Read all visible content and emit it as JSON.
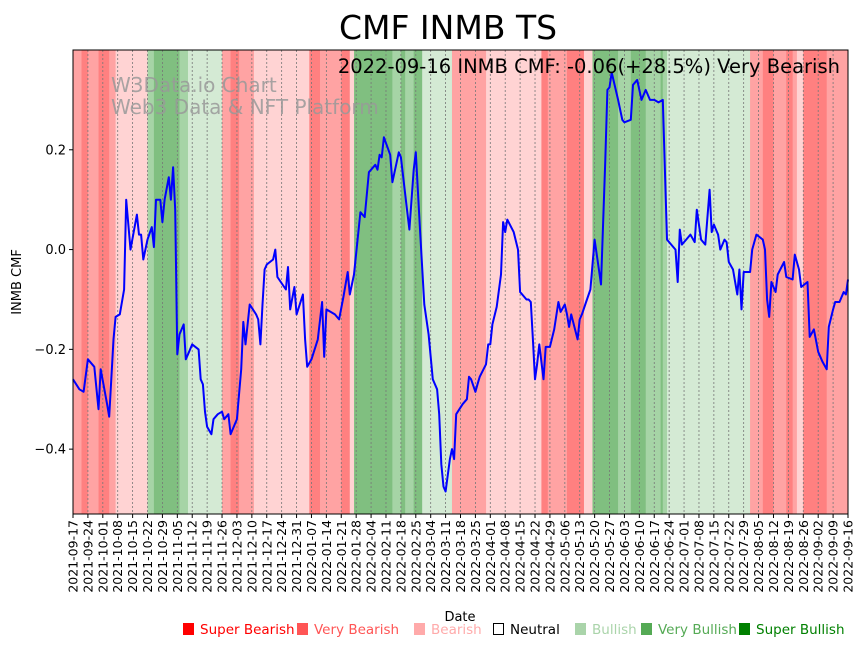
{
  "chart_data": {
    "type": "line",
    "title": "CMF INMB TS",
    "annotation": "2022-09-16 INMB CMF: -0.06(+28.5%) Very Bearish",
    "watermark": [
      "W3Data.io Chart",
      "Web3 Data & NFT Platform"
    ],
    "xlabel": "Date",
    "ylabel": "INMB CMF",
    "start_date": "2021-09-17",
    "xlim_days": [
      0,
      364
    ],
    "ylim": [
      -0.53,
      0.4
    ],
    "yticks": [
      {
        "v": 0.2,
        "label": "0.2"
      },
      {
        "v": 0.0,
        "label": "0.0"
      },
      {
        "v": -0.2,
        "label": "−0.2"
      },
      {
        "v": -0.4,
        "label": "−0.4"
      }
    ],
    "xticks": [
      "2021-09-17",
      "2021-09-24",
      "2021-10-01",
      "2021-10-08",
      "2021-10-15",
      "2021-10-22",
      "2021-10-29",
      "2021-11-05",
      "2021-11-12",
      "2021-11-19",
      "2021-11-26",
      "2021-12-03",
      "2021-12-10",
      "2021-12-17",
      "2021-12-24",
      "2021-12-31",
      "2022-01-07",
      "2022-01-14",
      "2022-01-21",
      "2022-01-28",
      "2022-02-04",
      "2022-02-11",
      "2022-02-18",
      "2022-02-25",
      "2022-03-04",
      "2022-03-11",
      "2022-03-18",
      "2022-03-25",
      "2022-04-01",
      "2022-04-08",
      "2022-04-15",
      "2022-04-22",
      "2022-04-29",
      "2022-05-06",
      "2022-05-13",
      "2022-05-20",
      "2022-05-27",
      "2022-06-03",
      "2022-06-10",
      "2022-06-17",
      "2022-06-24",
      "2022-07-01",
      "2022-07-08",
      "2022-07-15",
      "2022-07-22",
      "2022-07-29",
      "2022-08-05",
      "2022-08-12",
      "2022-08-19",
      "2022-08-26",
      "2022-09-02",
      "2022-09-09",
      "2022-09-16"
    ],
    "series": [
      {
        "name": "INMB CMF",
        "color": "#0000ff",
        "points": [
          [
            0,
            -0.26
          ],
          [
            3,
            -0.28
          ],
          [
            5,
            -0.285
          ],
          [
            7,
            -0.22
          ],
          [
            10,
            -0.235
          ],
          [
            12,
            -0.32
          ],
          [
            13,
            -0.24
          ],
          [
            16,
            -0.31
          ],
          [
            17,
            -0.335
          ],
          [
            19,
            -0.18
          ],
          [
            20,
            -0.135
          ],
          [
            22,
            -0.13
          ],
          [
            24,
            -0.08
          ],
          [
            25,
            0.1
          ],
          [
            27,
            0.0
          ],
          [
            30,
            0.07
          ],
          [
            31,
            0.03
          ],
          [
            32,
            0.03
          ],
          [
            33,
            -0.02
          ],
          [
            35,
            0.02
          ],
          [
            37,
            0.045
          ],
          [
            38,
            0.005
          ],
          [
            39,
            0.1
          ],
          [
            41,
            0.1
          ],
          [
            42,
            0.055
          ],
          [
            43,
            0.1
          ],
          [
            45,
            0.145
          ],
          [
            46,
            0.1
          ],
          [
            47,
            0.165
          ],
          [
            48,
            0.08
          ],
          [
            49,
            -0.21
          ],
          [
            50,
            -0.17
          ],
          [
            52,
            -0.15
          ],
          [
            53,
            -0.22
          ],
          [
            54,
            -0.21
          ],
          [
            56,
            -0.19
          ],
          [
            59,
            -0.2
          ],
          [
            60,
            -0.26
          ],
          [
            61,
            -0.27
          ],
          [
            62,
            -0.325
          ],
          [
            63,
            -0.355
          ],
          [
            65,
            -0.37
          ],
          [
            66,
            -0.34
          ],
          [
            68,
            -0.33
          ],
          [
            70,
            -0.325
          ],
          [
            71,
            -0.34
          ],
          [
            73,
            -0.33
          ],
          [
            74,
            -0.37
          ],
          [
            77,
            -0.34
          ],
          [
            79,
            -0.24
          ],
          [
            80,
            -0.145
          ],
          [
            81,
            -0.19
          ],
          [
            83,
            -0.11
          ],
          [
            86,
            -0.13
          ],
          [
            87,
            -0.14
          ],
          [
            88,
            -0.19
          ],
          [
            89,
            -0.11
          ],
          [
            90,
            -0.04
          ],
          [
            91,
            -0.03
          ],
          [
            94,
            -0.02
          ],
          [
            95,
            0.0
          ],
          [
            96,
            -0.055
          ],
          [
            100,
            -0.08
          ],
          [
            101,
            -0.035
          ],
          [
            102,
            -0.12
          ],
          [
            104,
            -0.075
          ],
          [
            105,
            -0.13
          ],
          [
            108,
            -0.09
          ],
          [
            109,
            -0.18
          ],
          [
            110,
            -0.235
          ],
          [
            112,
            -0.22
          ],
          [
            115,
            -0.18
          ],
          [
            117,
            -0.105
          ],
          [
            118,
            -0.215
          ],
          [
            119,
            -0.12
          ],
          [
            123,
            -0.13
          ],
          [
            125,
            -0.14
          ],
          [
            127,
            -0.095
          ],
          [
            129,
            -0.045
          ],
          [
            130,
            -0.09
          ],
          [
            132,
            -0.05
          ],
          [
            135,
            0.075
          ],
          [
            137,
            0.065
          ],
          [
            139,
            0.155
          ],
          [
            140,
            0.16
          ],
          [
            142,
            0.17
          ],
          [
            143,
            0.16
          ],
          [
            144,
            0.19
          ],
          [
            145,
            0.185
          ],
          [
            146,
            0.225
          ],
          [
            149,
            0.19
          ],
          [
            150,
            0.135
          ],
          [
            153,
            0.195
          ],
          [
            154,
            0.185
          ],
          [
            157,
            0.075
          ],
          [
            158,
            0.04
          ],
          [
            160,
            0.16
          ],
          [
            161,
            0.195
          ],
          [
            163,
            0.04
          ],
          [
            165,
            -0.11
          ],
          [
            167,
            -0.17
          ],
          [
            169,
            -0.26
          ],
          [
            171,
            -0.28
          ],
          [
            172,
            -0.33
          ],
          [
            173,
            -0.43
          ],
          [
            174,
            -0.475
          ],
          [
            175,
            -0.485
          ],
          [
            177,
            -0.42
          ],
          [
            178,
            -0.4
          ],
          [
            179,
            -0.42
          ],
          [
            180,
            -0.33
          ],
          [
            183,
            -0.31
          ],
          [
            185,
            -0.3
          ],
          [
            186,
            -0.255
          ],
          [
            187,
            -0.26
          ],
          [
            189,
            -0.285
          ],
          [
            190,
            -0.27
          ],
          [
            191,
            -0.255
          ],
          [
            194,
            -0.23
          ],
          [
            195,
            -0.19
          ],
          [
            196,
            -0.19
          ],
          [
            197,
            -0.15
          ],
          [
            199,
            -0.115
          ],
          [
            201,
            -0.05
          ],
          [
            202,
            0.055
          ],
          [
            203,
            0.035
          ],
          [
            204,
            0.06
          ],
          [
            207,
            0.035
          ],
          [
            209,
            0.0
          ],
          [
            210,
            -0.085
          ],
          [
            213,
            -0.1
          ],
          [
            214,
            -0.1
          ],
          [
            215,
            -0.105
          ],
          [
            216,
            -0.18
          ],
          [
            217,
            -0.26
          ],
          [
            218,
            -0.23
          ],
          [
            219,
            -0.19
          ],
          [
            221,
            -0.26
          ],
          [
            222,
            -0.195
          ],
          [
            224,
            -0.195
          ],
          [
            226,
            -0.16
          ],
          [
            228,
            -0.105
          ],
          [
            229,
            -0.125
          ],
          [
            231,
            -0.11
          ],
          [
            232,
            -0.13
          ],
          [
            233,
            -0.155
          ],
          [
            234,
            -0.13
          ],
          [
            237,
            -0.18
          ],
          [
            238,
            -0.14
          ],
          [
            239,
            -0.13
          ],
          [
            241,
            -0.105
          ],
          [
            243,
            -0.08
          ],
          [
            245,
            0.02
          ],
          [
            247,
            -0.04
          ],
          [
            248,
            -0.07
          ],
          [
            250,
            0.18
          ],
          [
            251,
            0.32
          ],
          [
            252,
            0.325
          ],
          [
            253,
            0.355
          ],
          [
            256,
            0.3
          ],
          [
            258,
            0.26
          ],
          [
            259,
            0.255
          ],
          [
            262,
            0.26
          ],
          [
            263,
            0.33
          ],
          [
            265,
            0.34
          ],
          [
            267,
            0.3
          ],
          [
            269,
            0.32
          ],
          [
            271,
            0.3
          ],
          [
            273,
            0.3
          ],
          [
            275,
            0.295
          ],
          [
            277,
            0.3
          ],
          [
            279,
            0.02
          ],
          [
            283,
            0.0
          ],
          [
            284,
            -0.065
          ],
          [
            285,
            0.04
          ],
          [
            286,
            0.01
          ],
          [
            288,
            0.02
          ],
          [
            290,
            0.03
          ],
          [
            292,
            0.015
          ],
          [
            293,
            0.08
          ],
          [
            295,
            0.02
          ],
          [
            297,
            0.01
          ],
          [
            299,
            0.12
          ],
          [
            300,
            0.035
          ],
          [
            301,
            0.05
          ],
          [
            303,
            0.03
          ],
          [
            304,
            0.0
          ],
          [
            306,
            0.02
          ],
          [
            307,
            0.015
          ],
          [
            308,
            -0.025
          ],
          [
            310,
            -0.04
          ],
          [
            312,
            -0.09
          ],
          [
            313,
            -0.04
          ],
          [
            314,
            -0.12
          ],
          [
            315,
            -0.045
          ],
          [
            318,
            -0.045
          ],
          [
            319,
            0.0
          ],
          [
            321,
            0.03
          ],
          [
            324,
            0.02
          ],
          [
            325,
            0.0
          ],
          [
            326,
            -0.1
          ],
          [
            327,
            -0.135
          ],
          [
            328,
            -0.065
          ],
          [
            330,
            -0.085
          ],
          [
            331,
            -0.05
          ],
          [
            334,
            -0.025
          ],
          [
            335,
            -0.055
          ],
          [
            338,
            -0.06
          ],
          [
            339,
            -0.01
          ],
          [
            341,
            -0.04
          ],
          [
            342,
            -0.075
          ],
          [
            345,
            -0.065
          ],
          [
            346,
            -0.175
          ],
          [
            348,
            -0.16
          ],
          [
            350,
            -0.205
          ],
          [
            352,
            -0.225
          ],
          [
            354,
            -0.24
          ],
          [
            355,
            -0.155
          ],
          [
            357,
            -0.12
          ],
          [
            358,
            -0.105
          ],
          [
            360,
            -0.105
          ],
          [
            362,
            -0.085
          ],
          [
            363,
            -0.09
          ],
          [
            364,
            -0.06
          ]
        ]
      }
    ],
    "bands": [
      [
        0,
        4,
        "very_bearish"
      ],
      [
        4,
        7,
        "super_bearish"
      ],
      [
        7,
        12,
        "very_bearish"
      ],
      [
        12,
        17,
        "super_bearish"
      ],
      [
        17,
        20,
        "very_bearish"
      ],
      [
        20,
        35,
        "bearish"
      ],
      [
        35,
        38,
        "very_bullish"
      ],
      [
        38,
        50,
        "super_bullish"
      ],
      [
        50,
        54,
        "very_bullish"
      ],
      [
        54,
        70,
        "bullish"
      ],
      [
        70,
        74,
        "very_bearish"
      ],
      [
        74,
        78,
        "super_bearish"
      ],
      [
        78,
        85,
        "very_bearish"
      ],
      [
        85,
        111,
        "bearish"
      ],
      [
        111,
        116,
        "super_bearish"
      ],
      [
        116,
        126,
        "very_bearish"
      ],
      [
        126,
        130,
        "super_bearish"
      ],
      [
        130,
        132,
        "bearish"
      ],
      [
        132,
        150,
        "super_bullish"
      ],
      [
        150,
        154,
        "very_bullish"
      ],
      [
        154,
        156,
        "super_bullish"
      ],
      [
        156,
        160,
        "very_bullish"
      ],
      [
        160,
        164,
        "super_bullish"
      ],
      [
        164,
        178,
        "bullish"
      ],
      [
        178,
        194,
        "very_bearish"
      ],
      [
        194,
        220,
        "bearish"
      ],
      [
        220,
        223,
        "super_bearish"
      ],
      [
        223,
        232,
        "very_bearish"
      ],
      [
        232,
        240,
        "super_bearish"
      ],
      [
        240,
        244,
        "bearish"
      ],
      [
        244,
        256,
        "super_bullish"
      ],
      [
        256,
        262,
        "very_bullish"
      ],
      [
        262,
        269,
        "super_bullish"
      ],
      [
        269,
        276,
        "very_bullish"
      ],
      [
        276,
        277,
        "super_bullish"
      ],
      [
        277,
        279,
        "very_bullish"
      ],
      [
        279,
        318,
        "bullish"
      ],
      [
        318,
        324,
        "very_bearish"
      ],
      [
        324,
        329,
        "super_bearish"
      ],
      [
        329,
        335,
        "very_bearish"
      ],
      [
        335,
        338,
        "super_bearish"
      ],
      [
        338,
        340,
        "very_bearish"
      ],
      [
        340,
        343,
        "bearish"
      ],
      [
        343,
        354,
        "super_bearish"
      ],
      [
        354,
        364,
        "very_bearish"
      ]
    ],
    "band_colors": {
      "super_bearish": "#ff8080",
      "very_bearish": "#ffa3a3",
      "bearish": "#ffd3d3",
      "bullish": "#d4ead4",
      "very_bullish": "#a6d4a6",
      "super_bullish": "#80bf80"
    },
    "legend": {
      "placement": "bottom",
      "items": [
        {
          "key": "super_bearish",
          "label": "Super Bearish",
          "color": "#ff0000"
        },
        {
          "key": "very_bearish",
          "label": "Very Bearish",
          "color": "#ff5555"
        },
        {
          "key": "bearish",
          "label": "Bearish",
          "color": "#ffaaaa"
        },
        {
          "key": "neutral",
          "label": "Neutral",
          "color": "#000000"
        },
        {
          "key": "bullish",
          "label": "Bullish",
          "color": "#aad4aa"
        },
        {
          "key": "very_bullish",
          "label": "Very Bullish",
          "color": "#55aa55"
        },
        {
          "key": "super_bullish",
          "label": "Super Bullish",
          "color": "#008000"
        }
      ]
    }
  }
}
